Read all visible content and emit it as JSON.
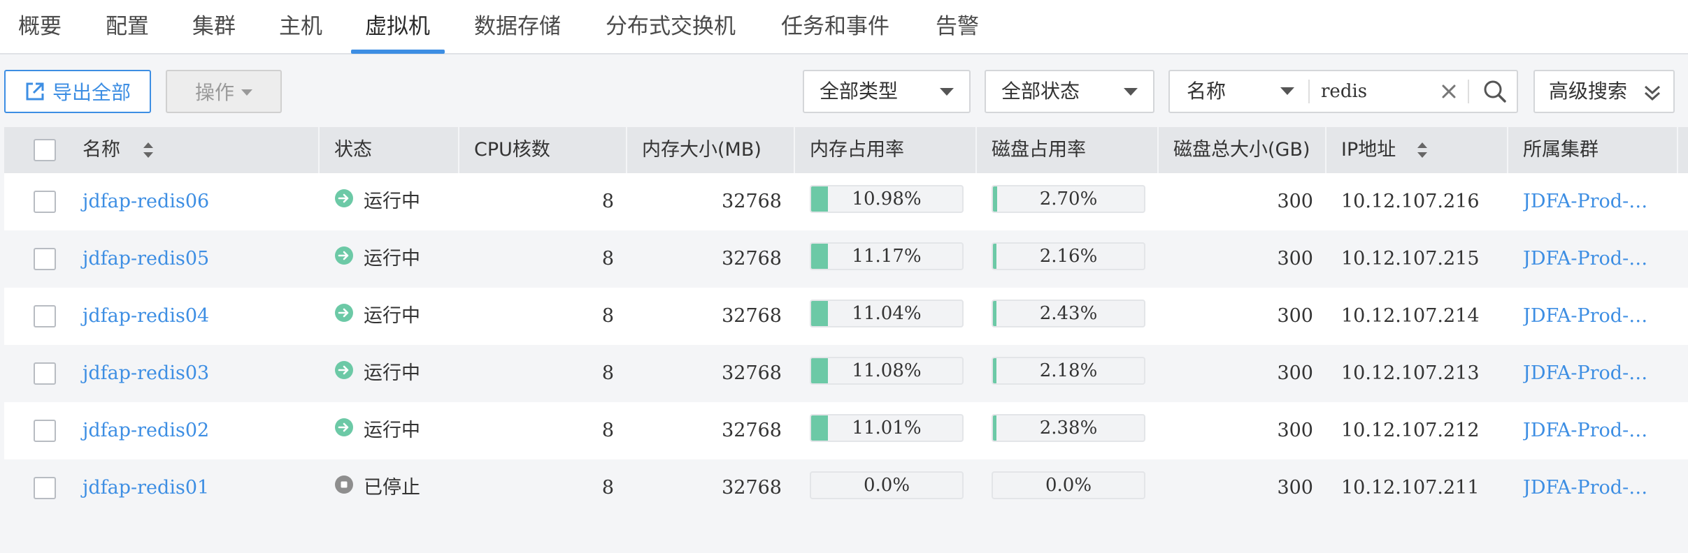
{
  "tabs": [
    {
      "label": "概要",
      "active": false
    },
    {
      "label": "配置",
      "active": false
    },
    {
      "label": "集群",
      "active": false
    },
    {
      "label": "主机",
      "active": false
    },
    {
      "label": "虚拟机",
      "active": true
    },
    {
      "label": "数据存储",
      "active": false
    },
    {
      "label": "分布式交换机",
      "active": false
    },
    {
      "label": "任务和事件",
      "active": false
    },
    {
      "label": "告警",
      "active": false
    }
  ],
  "toolbar": {
    "export_label": "导出全部",
    "ops_label": "操作",
    "type_filter": "全部类型",
    "status_filter": "全部状态",
    "search_field": "名称",
    "search_value": "redis",
    "advanced_label": "高级搜索"
  },
  "table": {
    "columns": [
      "名称",
      "状态",
      "CPU核数",
      "内存大小(MB)",
      "内存占用率",
      "磁盘占用率",
      "磁盘总大小(GB)",
      "IP地址",
      "所属集群"
    ],
    "rows": [
      {
        "name": "jdfap-redis06",
        "status": "运行中",
        "state": "running",
        "cpu": "8",
        "mem": "32768",
        "mem_usage": "10.98%",
        "mem_pct": 10.98,
        "disk_usage": "2.70%",
        "disk_pct": 2.7,
        "disk_total": "300",
        "ip": "10.12.107.216",
        "cluster": "JDFA-Prod-Cl…"
      },
      {
        "name": "jdfap-redis05",
        "status": "运行中",
        "state": "running",
        "cpu": "8",
        "mem": "32768",
        "mem_usage": "11.17%",
        "mem_pct": 11.17,
        "disk_usage": "2.16%",
        "disk_pct": 2.16,
        "disk_total": "300",
        "ip": "10.12.107.215",
        "cluster": "JDFA-Prod-Cl…"
      },
      {
        "name": "jdfap-redis04",
        "status": "运行中",
        "state": "running",
        "cpu": "8",
        "mem": "32768",
        "mem_usage": "11.04%",
        "mem_pct": 11.04,
        "disk_usage": "2.43%",
        "disk_pct": 2.43,
        "disk_total": "300",
        "ip": "10.12.107.214",
        "cluster": "JDFA-Prod-Cl…"
      },
      {
        "name": "jdfap-redis03",
        "status": "运行中",
        "state": "running",
        "cpu": "8",
        "mem": "32768",
        "mem_usage": "11.08%",
        "mem_pct": 11.08,
        "disk_usage": "2.18%",
        "disk_pct": 2.18,
        "disk_total": "300",
        "ip": "10.12.107.213",
        "cluster": "JDFA-Prod-Cl…"
      },
      {
        "name": "jdfap-redis02",
        "status": "运行中",
        "state": "running",
        "cpu": "8",
        "mem": "32768",
        "mem_usage": "11.01%",
        "mem_pct": 11.01,
        "disk_usage": "2.38%",
        "disk_pct": 2.38,
        "disk_total": "300",
        "ip": "10.12.107.212",
        "cluster": "JDFA-Prod-Cl…"
      },
      {
        "name": "jdfap-redis01",
        "status": "已停止",
        "state": "stopped",
        "cpu": "8",
        "mem": "32768",
        "mem_usage": "0.0%",
        "mem_pct": 0,
        "disk_usage": "0.0%",
        "disk_pct": 0,
        "disk_total": "300",
        "ip": "10.12.107.211",
        "cluster": "JDFA-Prod-Cl…"
      }
    ]
  },
  "colors": {
    "accent": "#3d8ee3",
    "running": "#6cc9a6",
    "stopped": "#8e8e8e"
  }
}
